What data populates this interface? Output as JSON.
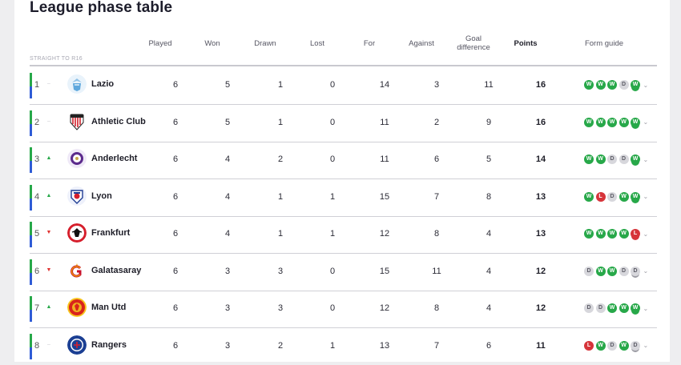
{
  "title": "League phase table",
  "section_label": "STRAIGHT TO R16",
  "headers": {
    "played": "Played",
    "won": "Won",
    "drawn": "Drawn",
    "lost": "Lost",
    "for": "For",
    "against": "Against",
    "goal_difference": "Goal difference",
    "points": "Points",
    "form_guide": "Form guide"
  },
  "colors": {
    "win": "#27a849",
    "draw": "#d7d7dc",
    "loss": "#d6343a",
    "r16_bar": "#27a849",
    "playoff_bar": "#2f5cd6"
  },
  "rows": [
    {
      "pos": "1",
      "move": "same",
      "move_glyph": "–",
      "team": "Lazio",
      "crest_icon": "lazio-crest-icon",
      "played": "6",
      "won": "5",
      "drawn": "1",
      "lost": "0",
      "for": "14",
      "against": "3",
      "gd": "11",
      "points": "16",
      "form": [
        "W",
        "W",
        "W",
        "D",
        "W"
      ]
    },
    {
      "pos": "2",
      "move": "same",
      "move_glyph": "–",
      "team": "Athletic Club",
      "crest_icon": "athletic-club-crest-icon",
      "played": "6",
      "won": "5",
      "drawn": "1",
      "lost": "0",
      "for": "11",
      "against": "2",
      "gd": "9",
      "points": "16",
      "form": [
        "W",
        "W",
        "W",
        "W",
        "W"
      ]
    },
    {
      "pos": "3",
      "move": "up",
      "move_glyph": "▲",
      "team": "Anderlecht",
      "crest_icon": "anderlecht-crest-icon",
      "played": "6",
      "won": "4",
      "drawn": "2",
      "lost": "0",
      "for": "11",
      "against": "6",
      "gd": "5",
      "points": "14",
      "form": [
        "W",
        "W",
        "D",
        "D",
        "W"
      ]
    },
    {
      "pos": "4",
      "move": "up",
      "move_glyph": "▲",
      "team": "Lyon",
      "crest_icon": "lyon-crest-icon",
      "played": "6",
      "won": "4",
      "drawn": "1",
      "lost": "1",
      "for": "15",
      "against": "7",
      "gd": "8",
      "points": "13",
      "form": [
        "W",
        "L",
        "D",
        "W",
        "W"
      ]
    },
    {
      "pos": "5",
      "move": "down",
      "move_glyph": "▼",
      "team": "Frankfurt",
      "crest_icon": "frankfurt-crest-icon",
      "played": "6",
      "won": "4",
      "drawn": "1",
      "lost": "1",
      "for": "12",
      "against": "8",
      "gd": "4",
      "points": "13",
      "form": [
        "W",
        "W",
        "W",
        "W",
        "L"
      ]
    },
    {
      "pos": "6",
      "move": "down",
      "move_glyph": "▼",
      "team": "Galatasaray",
      "crest_icon": "galatasaray-crest-icon",
      "played": "6",
      "won": "3",
      "drawn": "3",
      "lost": "0",
      "for": "15",
      "against": "11",
      "gd": "4",
      "points": "12",
      "form": [
        "D",
        "W",
        "W",
        "D",
        "D"
      ]
    },
    {
      "pos": "7",
      "move": "up",
      "move_glyph": "▲",
      "team": "Man Utd",
      "crest_icon": "man-utd-crest-icon",
      "played": "6",
      "won": "3",
      "drawn": "3",
      "lost": "0",
      "for": "12",
      "against": "8",
      "gd": "4",
      "points": "12",
      "form": [
        "D",
        "D",
        "W",
        "W",
        "W"
      ]
    },
    {
      "pos": "8",
      "move": "same",
      "move_glyph": "–",
      "team": "Rangers",
      "crest_icon": "rangers-crest-icon",
      "played": "6",
      "won": "3",
      "drawn": "2",
      "lost": "1",
      "for": "13",
      "against": "7",
      "gd": "6",
      "points": "11",
      "form": [
        "L",
        "W",
        "D",
        "W",
        "D"
      ]
    }
  ]
}
